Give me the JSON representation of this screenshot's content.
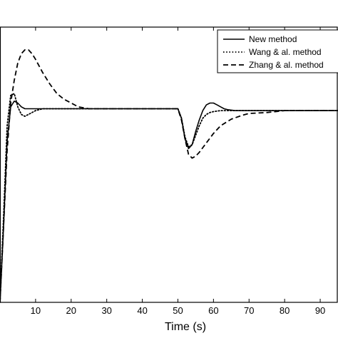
{
  "chart_data": {
    "type": "line",
    "xlabel": "Time (s)",
    "ylabel": "",
    "title": "",
    "xlim": [
      0,
      95
    ],
    "ylim": [
      0,
      1.45
    ],
    "x_ticks": [
      10,
      20,
      30,
      40,
      50,
      60,
      70,
      80,
      90
    ],
    "x_tick_labels": [
      "10",
      "20",
      "30",
      "40",
      "50",
      "60",
      "70",
      "80",
      "90"
    ],
    "grid": false,
    "legend_position": "top-right",
    "series": [
      {
        "name": "New method",
        "style": "solid",
        "x": [
          0,
          1,
          2,
          3,
          4,
          5,
          6,
          7,
          8,
          10,
          15,
          20,
          30,
          40,
          49.9,
          50,
          51,
          52,
          53,
          54,
          55,
          56,
          57,
          58,
          59,
          60,
          61,
          62,
          63,
          64,
          66,
          68,
          70,
          75,
          80,
          95
        ],
        "y": [
          0,
          0.4,
          0.85,
          1.03,
          1.06,
          1.05,
          1.03,
          1.02,
          1.02,
          1.02,
          1.02,
          1.02,
          1.02,
          1.02,
          1.02,
          1.02,
          0.97,
          0.86,
          0.81,
          0.83,
          0.9,
          0.96,
          1.01,
          1.04,
          1.05,
          1.05,
          1.04,
          1.03,
          1.02,
          1.015,
          1.01,
          1.01,
          1.01,
          1.01,
          1.01,
          1.01
        ]
      },
      {
        "name": "Wang & al. method",
        "style": "dotted",
        "x": [
          0,
          1,
          2,
          3,
          4,
          5,
          6,
          7,
          8,
          9,
          10,
          12,
          15,
          20,
          30,
          40,
          49.9,
          50,
          51,
          52,
          53,
          54,
          55,
          56,
          57,
          58,
          59,
          60,
          62,
          64,
          66,
          68,
          70,
          75,
          80,
          95
        ],
        "y": [
          0,
          0.45,
          0.93,
          1.09,
          1.1,
          1.03,
          0.99,
          0.98,
          0.99,
          1.0,
          1.01,
          1.02,
          1.02,
          1.02,
          1.02,
          1.02,
          1.02,
          1.02,
          0.97,
          0.87,
          0.82,
          0.83,
          0.88,
          0.93,
          0.97,
          0.99,
          1.0,
          1.005,
          1.01,
          1.01,
          1.01,
          1.01,
          1.01,
          1.01,
          1.01,
          1.01
        ]
      },
      {
        "name": "Zhang & al. method",
        "style": "dashed",
        "x": [
          0,
          1,
          2,
          3,
          4,
          5,
          6,
          7,
          8,
          9,
          10,
          12,
          14,
          16,
          18,
          20,
          22,
          25,
          30,
          40,
          49.9,
          50,
          51,
          52,
          53,
          54,
          55,
          56,
          58,
          60,
          62,
          65,
          68,
          70,
          75,
          80,
          90,
          95
        ],
        "y": [
          0,
          0.4,
          0.8,
          1.05,
          1.17,
          1.26,
          1.31,
          1.33,
          1.33,
          1.31,
          1.28,
          1.21,
          1.15,
          1.1,
          1.07,
          1.05,
          1.03,
          1.02,
          1.02,
          1.02,
          1.02,
          1.02,
          0.96,
          0.86,
          0.78,
          0.76,
          0.77,
          0.79,
          0.84,
          0.89,
          0.93,
          0.965,
          0.985,
          0.995,
          1.0,
          1.01,
          1.01,
          1.01
        ]
      }
    ]
  }
}
